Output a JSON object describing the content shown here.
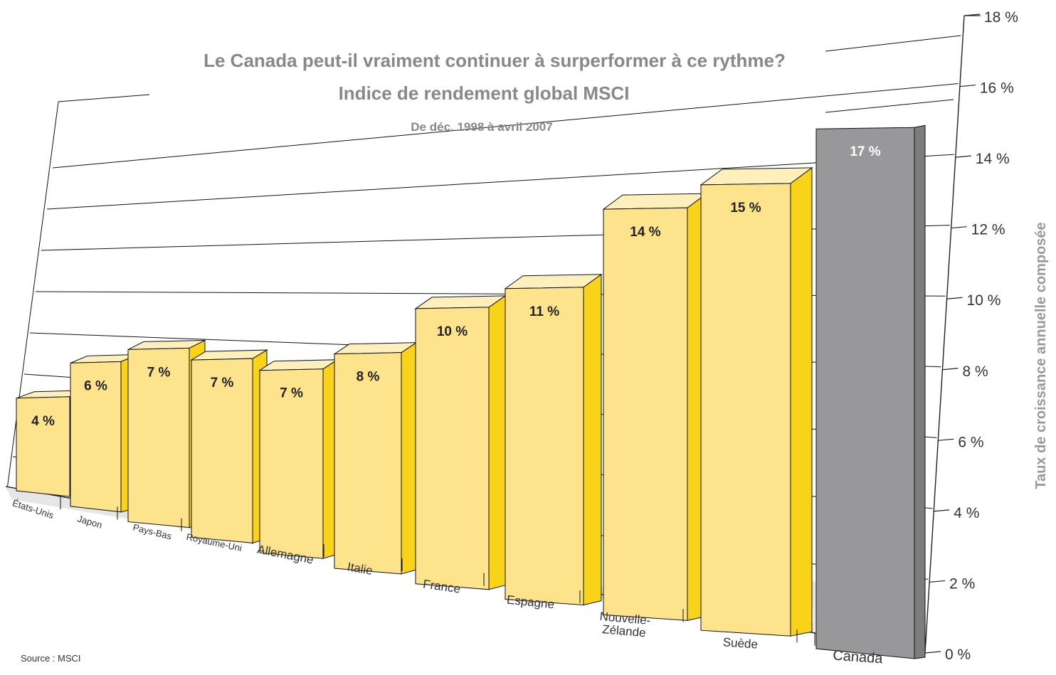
{
  "chart_data": {
    "type": "bar",
    "title": "Le Canada peut-il vraiment continuer à surperformer à ce rythme?",
    "subtitle": "Indice de rendement global MSCI",
    "period": "De déc. 1998 à avril 2007",
    "ylabel": "Taux de croissance annuelle composée",
    "ylim": [
      0,
      18
    ],
    "yticks": [
      "0 %",
      "2 %",
      "4 %",
      "6 %",
      "8 %",
      "10 %",
      "12 %",
      "14 %",
      "16 %",
      "18 %"
    ],
    "categories": [
      "États-Unis",
      "Japon",
      "Pays-Bas",
      "Royaume-Uni",
      "Allemagne",
      "Italie",
      "France",
      "Espagne",
      "Nouvelle-Zélande",
      "Suède",
      "Canada"
    ],
    "category_lines": [
      [
        "États-Unis"
      ],
      [
        "Japon"
      ],
      [
        "Pays-Bas"
      ],
      [
        "Royaume-Uni"
      ],
      [
        "Allemagne"
      ],
      [
        "Italie"
      ],
      [
        "France"
      ],
      [
        "Espagne"
      ],
      [
        "Nouvelle-",
        "Zélande"
      ],
      [
        "Suède"
      ],
      [
        "Canada"
      ]
    ],
    "values": [
      4,
      6,
      7,
      7,
      7,
      8,
      10,
      11,
      14,
      15,
      17
    ],
    "value_labels": [
      "4 %",
      "6 %",
      "7 %",
      "7 %",
      "7 %",
      "8 %",
      "10 %",
      "11 %",
      "14 %",
      "15 %",
      "17 %"
    ],
    "source": "Source : MSCI",
    "colors": {
      "bar_front": "#FDE48C",
      "bar_top": "#FEF0BC",
      "bar_side": "#F9D21A",
      "highlight_front": "#98989A",
      "highlight_top": "#BDBDBF",
      "highlight_side": "#7D7D80",
      "floor": "#E6E6E6",
      "title": "#888888",
      "axis_title": "#999999"
    }
  }
}
